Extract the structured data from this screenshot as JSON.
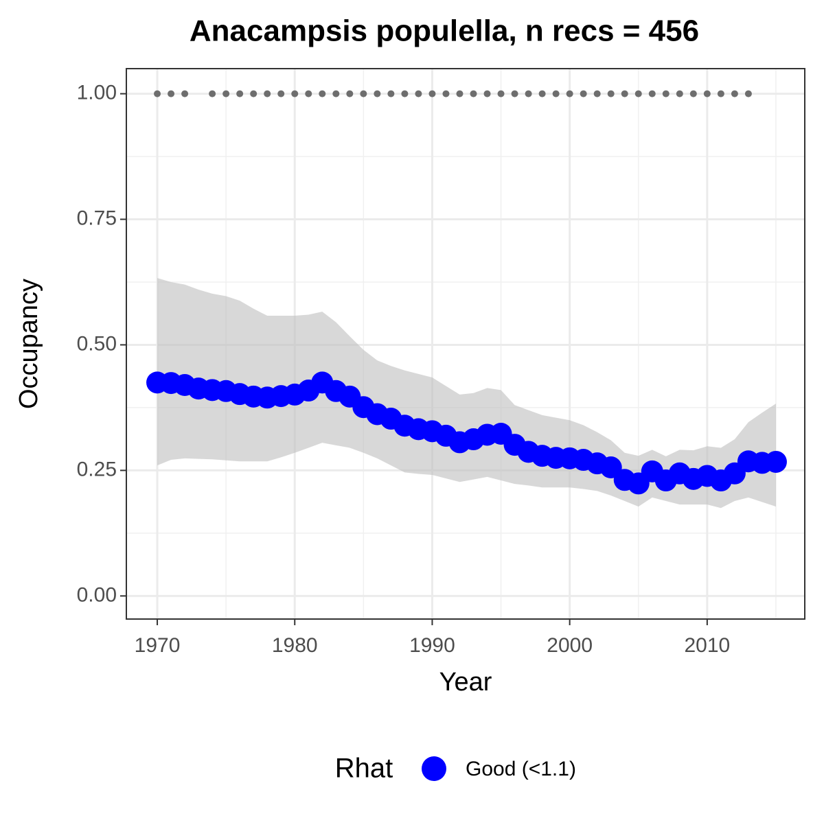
{
  "chart_data": {
    "type": "line",
    "title": "Anacampsis populella, n recs = 456",
    "x_label": "Year",
    "y_label": "Occupancy",
    "legend_title": "Rhat",
    "legend_position": "bottom",
    "grid": true,
    "x": [
      1970,
      1971,
      1972,
      1973,
      1974,
      1975,
      1976,
      1977,
      1978,
      1979,
      1980,
      1981,
      1982,
      1983,
      1984,
      1985,
      1986,
      1987,
      1988,
      1989,
      1990,
      1991,
      1992,
      1993,
      1994,
      1995,
      1996,
      1997,
      1998,
      1999,
      2000,
      2001,
      2002,
      2003,
      2004,
      2005,
      2006,
      2007,
      2008,
      2009,
      2010,
      2011,
      2012,
      2013,
      2014,
      2015
    ],
    "series": [
      {
        "name": "Good (<1.1)",
        "color": "#0000ff",
        "values": [
          0.425,
          0.424,
          0.42,
          0.413,
          0.41,
          0.408,
          0.402,
          0.397,
          0.395,
          0.398,
          0.401,
          0.409,
          0.425,
          0.408,
          0.397,
          0.376,
          0.362,
          0.353,
          0.339,
          0.332,
          0.328,
          0.319,
          0.306,
          0.312,
          0.321,
          0.323,
          0.301,
          0.287,
          0.279,
          0.275,
          0.274,
          0.271,
          0.264,
          0.256,
          0.231,
          0.224,
          0.248,
          0.23,
          0.244,
          0.233,
          0.239,
          0.23,
          0.244,
          0.268,
          0.265,
          0.267
        ]
      }
    ],
    "ribbon": {
      "color": "#bebebe",
      "upper": [
        0.633,
        0.625,
        0.62,
        0.61,
        0.602,
        0.597,
        0.588,
        0.572,
        0.558,
        0.558,
        0.558,
        0.56,
        0.566,
        0.545,
        0.517,
        0.49,
        0.469,
        0.458,
        0.449,
        0.442,
        0.435,
        0.418,
        0.401,
        0.404,
        0.414,
        0.41,
        0.38,
        0.37,
        0.36,
        0.355,
        0.35,
        0.34,
        0.326,
        0.31,
        0.285,
        0.279,
        0.291,
        0.278,
        0.291,
        0.29,
        0.298,
        0.295,
        0.312,
        0.346,
        0.365,
        0.383
      ],
      "lower": [
        0.26,
        0.271,
        0.274,
        0.273,
        0.272,
        0.27,
        0.268,
        0.268,
        0.268,
        0.276,
        0.285,
        0.295,
        0.305,
        0.3,
        0.295,
        0.285,
        0.274,
        0.26,
        0.246,
        0.243,
        0.241,
        0.234,
        0.227,
        0.232,
        0.237,
        0.23,
        0.223,
        0.22,
        0.216,
        0.216,
        0.216,
        0.213,
        0.209,
        0.2,
        0.189,
        0.178,
        0.196,
        0.189,
        0.182,
        0.182,
        0.182,
        0.175,
        0.189,
        0.196,
        0.187,
        0.178
      ]
    },
    "record_years": {
      "color": "#6e6e6e",
      "x": [
        1970,
        1971,
        1972,
        1974,
        1975,
        1976,
        1977,
        1978,
        1979,
        1980,
        1981,
        1982,
        1983,
        1984,
        1985,
        1986,
        1987,
        1988,
        1989,
        1990,
        1991,
        1992,
        1993,
        1994,
        1995,
        1996,
        1997,
        1998,
        1999,
        2000,
        2001,
        2002,
        2003,
        2004,
        2005,
        2006,
        2007,
        2008,
        2009,
        2010,
        2011,
        2012,
        2013
      ],
      "y": [
        1,
        1,
        1,
        1,
        1,
        1,
        1,
        1,
        1,
        1,
        1,
        1,
        1,
        1,
        1,
        1,
        1,
        1,
        1,
        1,
        1,
        1,
        1,
        1,
        1,
        1,
        1,
        1,
        1,
        1,
        1,
        1,
        1,
        1,
        1,
        1,
        1,
        1,
        1,
        1,
        1,
        1,
        1
      ]
    },
    "xlim": [
      1967.75,
      2017.1
    ],
    "ylim": [
      -0.046,
      1.05
    ],
    "xticks": [
      1970,
      1980,
      1990,
      2000,
      2010
    ],
    "yticks": [
      {
        "value": 0,
        "label": "0.00"
      },
      {
        "value": 0.25,
        "label": "0.25"
      },
      {
        "value": 0.5,
        "label": "0.50"
      },
      {
        "value": 0.75,
        "label": "0.75"
      },
      {
        "value": 1,
        "label": "1.00"
      }
    ],
    "x_minor_grid": [
      1975,
      1985,
      1995,
      2005,
      2015
    ],
    "y_minor_grid": [
      0.125,
      0.375,
      0.625,
      0.875
    ]
  }
}
